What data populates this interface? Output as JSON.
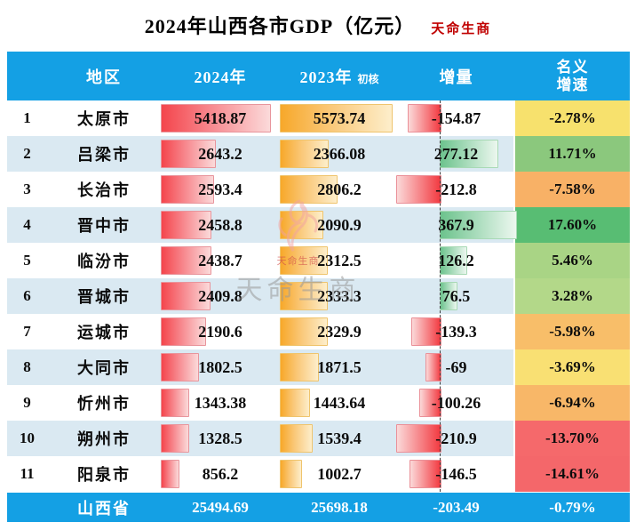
{
  "title": "2024年山西各市GDP（亿元）",
  "brand": "天命生商",
  "watermark": {
    "bird_icon": "phoenix-icon",
    "seal_text": "天命生商",
    "text": "天命生商"
  },
  "colors": {
    "header_blue": "#14a0e4",
    "stripe_blue": "#dae9f2",
    "bar_2024_red": "#f4454c",
    "bar_2023_orange": "#f7a82a",
    "delta_negative_red": "#f23940",
    "delta_positive_green": "#6cc38d",
    "brand_red": "#c00000"
  },
  "chart_data": {
    "type": "table",
    "title": "2024年山西各市GDP（亿元）",
    "header": {
      "region": "地区",
      "y2024": "2024年",
      "y2023": "2023年",
      "y2023_note": "初核",
      "delta": "增量",
      "growth_line1": "名义",
      "growth_line2": "增速"
    },
    "axis": {
      "gdp2024_max": 5418.87,
      "gdp2023_max": 5573.74,
      "delta_max_abs": 367.9
    },
    "rows": [
      {
        "rank": "1",
        "region": "太原市",
        "gdp2024": 5418.87,
        "gdp2024_label": "5418.87",
        "gdp2023": 5573.74,
        "gdp2023_label": "5573.74",
        "delta": -154.87,
        "delta_label": "-154.87",
        "growth_label": "-2.78%",
        "growth_color": "#f7e16d"
      },
      {
        "rank": "2",
        "region": "吕梁市",
        "gdp2024": 2643.2,
        "gdp2024_label": "2643.2",
        "gdp2023": 2366.08,
        "gdp2023_label": "2366.08",
        "delta": 277.12,
        "delta_label": "277.12",
        "growth_label": "11.71%",
        "growth_color": "#8bc87d"
      },
      {
        "rank": "3",
        "region": "长治市",
        "gdp2024": 2593.4,
        "gdp2024_label": "2593.4",
        "gdp2023": 2806.2,
        "gdp2023_label": "2806.2",
        "delta": -212.8,
        "delta_label": "-212.8",
        "growth_label": "-7.58%",
        "growth_color": "#f8b166"
      },
      {
        "rank": "4",
        "region": "晋中市",
        "gdp2024": 2458.8,
        "gdp2024_label": "2458.8",
        "gdp2023": 2090.9,
        "gdp2023_label": "2090.9",
        "delta": 367.9,
        "delta_label": "367.9",
        "growth_label": "17.60%",
        "growth_color": "#58bd73"
      },
      {
        "rank": "5",
        "region": "临汾市",
        "gdp2024": 2438.7,
        "gdp2024_label": "2438.7",
        "gdp2023": 2312.5,
        "gdp2023_label": "2312.5",
        "delta": 126.2,
        "delta_label": "126.2",
        "growth_label": "5.46%",
        "growth_color": "#a9d485"
      },
      {
        "rank": "6",
        "region": "晋城市",
        "gdp2024": 2409.8,
        "gdp2024_label": "2409.8",
        "gdp2023": 2333.3,
        "gdp2023_label": "2333.3",
        "delta": 76.5,
        "delta_label": "76.5",
        "growth_label": "3.28%",
        "growth_color": "#b3d889"
      },
      {
        "rank": "7",
        "region": "运城市",
        "gdp2024": 2190.6,
        "gdp2024_label": "2190.6",
        "gdp2023": 2329.9,
        "gdp2023_label": "2329.9",
        "delta": -139.3,
        "delta_label": "-139.3",
        "growth_label": "-5.98%",
        "growth_color": "#f8be69"
      },
      {
        "rank": "8",
        "region": "大同市",
        "gdp2024": 1802.5,
        "gdp2024_label": "1802.5",
        "gdp2023": 1871.5,
        "gdp2023_label": "1871.5",
        "delta": -69,
        "delta_label": "-69",
        "growth_label": "-3.69%",
        "growth_color": "#f9e073"
      },
      {
        "rank": "9",
        "region": "忻州市",
        "gdp2024": 1343.38,
        "gdp2024_label": "1343.38",
        "gdp2023": 1443.64,
        "gdp2023_label": "1443.64",
        "delta": -100.26,
        "delta_label": "-100.26",
        "growth_label": "-6.94%",
        "growth_color": "#f8b768"
      },
      {
        "rank": "10",
        "region": "朔州市",
        "gdp2024": 1328.5,
        "gdp2024_label": "1328.5",
        "gdp2023": 1539.4,
        "gdp2023_label": "1539.4",
        "delta": -210.9,
        "delta_label": "-210.9",
        "growth_label": "-13.70%",
        "growth_color": "#f5696b"
      },
      {
        "rank": "11",
        "region": "阳泉市",
        "gdp2024": 856.2,
        "gdp2024_label": "856.2",
        "gdp2023": 1002.7,
        "gdp2023_label": "1002.7",
        "delta": -146.5,
        "delta_label": "-146.5",
        "growth_label": "-14.61%",
        "growth_color": "#f4676a"
      }
    ],
    "summary": {
      "region": "山西省",
      "gdp2024_label": "25494.69",
      "gdp2023_label": "25698.18",
      "delta_label": "-203.49",
      "growth_label": "-0.79%"
    }
  }
}
